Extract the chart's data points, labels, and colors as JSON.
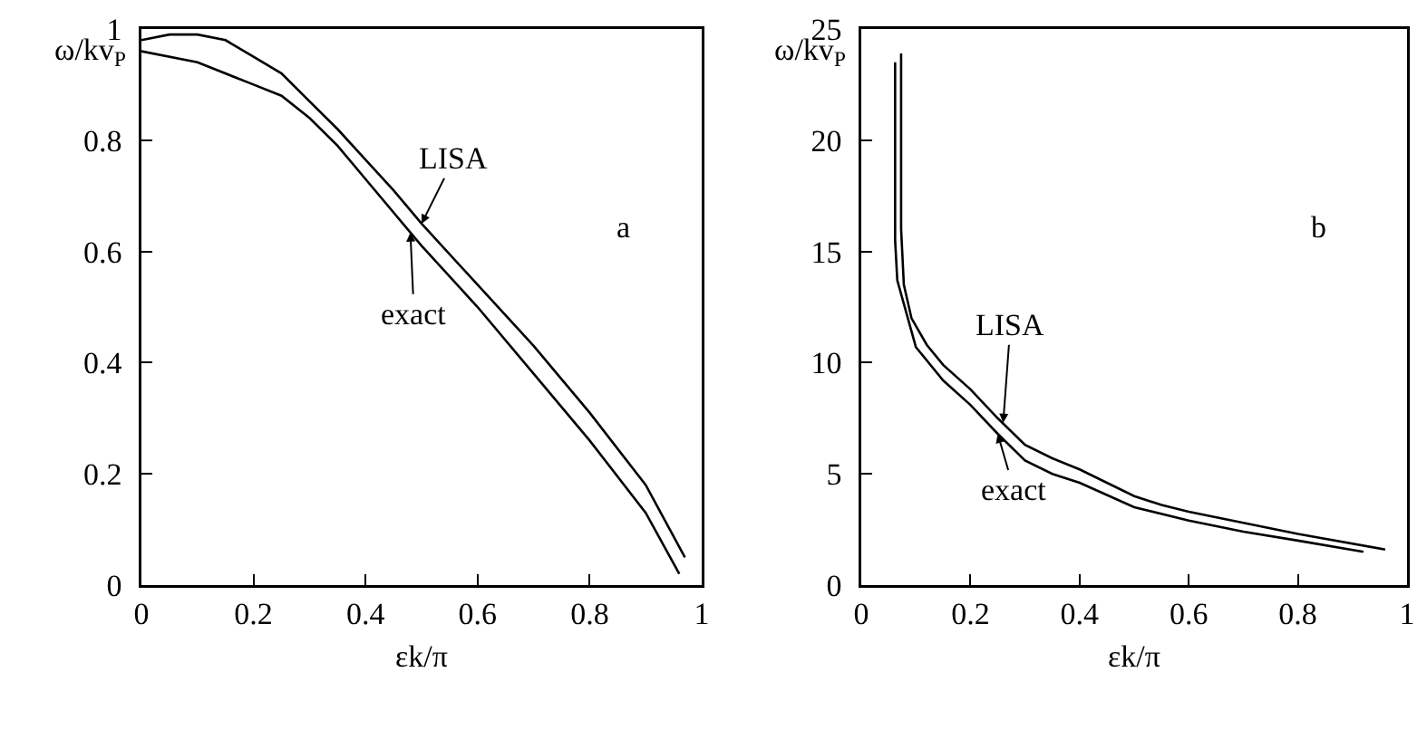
{
  "chart_data": [
    {
      "type": "line",
      "xlabel": "εk/π",
      "ylabel": "ω/kv$_{P}$",
      "xlim": [
        0,
        1
      ],
      "ylim": [
        0,
        1
      ],
      "xticks": [
        0,
        0.2,
        0.4,
        0.6,
        0.8,
        1
      ],
      "yticks": [
        0,
        0.2,
        0.4,
        0.6,
        0.8,
        1
      ],
      "grid": false,
      "marker": "none",
      "line_style": "solid",
      "series": [
        {
          "color": "#000000",
          "x": [
            0,
            0.05,
            0.1,
            0.15,
            0.2,
            0.25,
            0.3,
            0.35,
            0.4,
            0.45,
            0.5,
            0.6,
            0.7,
            0.8,
            0.9,
            0.97
          ],
          "values": [
            0.98,
            0.99,
            0.99,
            0.98,
            0.95,
            0.92,
            0.87,
            0.82,
            0.765,
            0.71,
            0.65,
            0.54,
            0.43,
            0.31,
            0.18,
            0.05
          ]
        },
        {
          "color": "#000000",
          "x": [
            0,
            0.1,
            0.2,
            0.25,
            0.3,
            0.35,
            0.4,
            0.5,
            0.6,
            0.7,
            0.8,
            0.9,
            0.96
          ],
          "values": [
            0.96,
            0.94,
            0.9,
            0.88,
            0.84,
            0.79,
            0.73,
            0.61,
            0.5,
            0.38,
            0.26,
            0.13,
            0.02
          ]
        }
      ],
      "annotations": [
        {
          "text": "LISA",
          "x": 0.5,
          "y": 0.65
        },
        {
          "text": "exact",
          "x": 0.48,
          "y": 0.634
        },
        "a"
      ]
    },
    {
      "type": "line",
      "xlabel": "εk/π",
      "ylabel": "ω/kv$_{P}$",
      "xlim": [
        0,
        1
      ],
      "ylim": [
        0,
        25
      ],
      "xticks": [
        0,
        0.2,
        0.4,
        0.6,
        0.8,
        1
      ],
      "yticks": [
        0,
        5,
        10,
        15,
        20,
        25
      ],
      "grid": false,
      "marker": "none",
      "line_style": "solid",
      "series": [
        {
          "color": "#000000",
          "x": [
            0.073,
            0.073,
            0.078,
            0.092,
            0.12,
            0.15,
            0.2,
            0.25,
            0.3,
            0.35,
            0.4,
            0.5,
            0.55,
            0.6,
            0.7,
            0.8,
            0.96
          ],
          "values": [
            23.9,
            16,
            13.5,
            12,
            10.8,
            9.9,
            8.8,
            7.5,
            6.3,
            5.7,
            5.2,
            4,
            3.6,
            3.3,
            2.8,
            2.3,
            1.6
          ]
        },
        {
          "color": "#000000",
          "x": [
            0.062,
            0.062,
            0.066,
            0.1,
            0.15,
            0.2,
            0.25,
            0.3,
            0.35,
            0.4,
            0.5,
            0.6,
            0.7,
            0.8,
            0.92
          ],
          "values": [
            23.5,
            15.5,
            13.7,
            10.7,
            9.2,
            8.1,
            6.8,
            5.6,
            5,
            4.6,
            3.5,
            2.9,
            2.4,
            2,
            1.5
          ]
        }
      ],
      "annotations": [
        {
          "text": "LISA",
          "x": 0.26,
          "y": 7.3
        },
        {
          "text": "exact",
          "x": 0.25,
          "y": 6.8
        },
        "b"
      ]
    }
  ]
}
